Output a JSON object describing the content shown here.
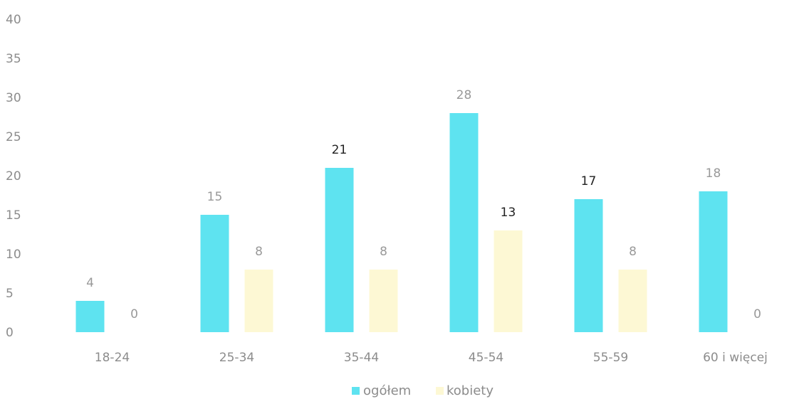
{
  "chart_data": {
    "type": "bar",
    "categories": [
      "18-24",
      "25-34",
      "35-44",
      "45-54",
      "55-59",
      "60 i więcej"
    ],
    "series": [
      {
        "name": "ogółem",
        "values": [
          4,
          15,
          21,
          28,
          17,
          18
        ],
        "color": "#5ee3f0"
      },
      {
        "name": "kobiety",
        "values": [
          0,
          8,
          8,
          13,
          8,
          0
        ],
        "color": "#fdf8d4"
      }
    ],
    "data_label_colors": {
      "ogółem": [
        "#999999",
        "#999999",
        "#222222",
        "#999999",
        "#222222",
        "#999999"
      ],
      "kobiety": [
        "#999999",
        "#999999",
        "#999999",
        "#222222",
        "#999999",
        "#999999"
      ]
    },
    "ylim": [
      0,
      40
    ],
    "yticks": [
      0,
      5,
      10,
      15,
      20,
      25,
      30,
      35,
      40
    ],
    "grid": false,
    "legend_position": "bottom-center",
    "title": "",
    "xlabel": "",
    "ylabel": ""
  }
}
